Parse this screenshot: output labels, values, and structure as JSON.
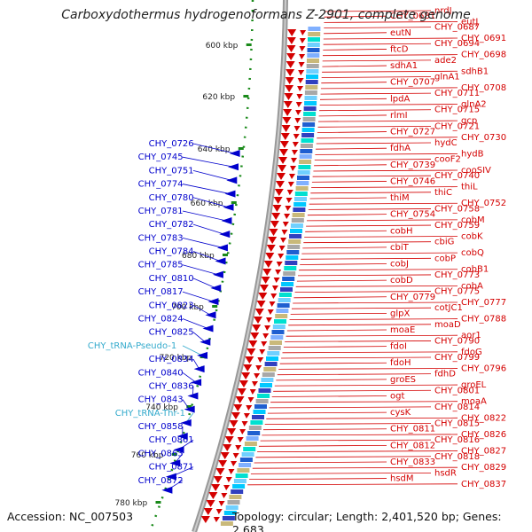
{
  "title": "Carboxydothermus hydrogenoformans Z-2901, complete genome",
  "footer": {
    "accession_label": "Accession: NC_007503",
    "summary_label": "Topology: circular; Length: 2,401,520 bp; Genes: 2,683"
  },
  "colors": {
    "forward_gene": "#d40000",
    "reverse_gene": "#0000cc",
    "trna": "#33aacc",
    "tick": "#1a8a1a",
    "axis": "#888888"
  },
  "kbp_ticks": [
    "600 kbp",
    "620 kbp",
    "640 kbp",
    "660 kbp",
    "680 kbp",
    "700 kbp",
    "720 kbp",
    "740 kbp",
    "760 kbp",
    "780 kbp"
  ],
  "right_labels": [
    "nrdJ",
    "CHY_0681",
    "eutJ",
    "CHY_0687",
    "eutN",
    "CHY_0691",
    "CHY_0694",
    "ftcD",
    "CHY_0698",
    "ade2",
    "sdhA1",
    "sdhB1",
    "glnA1",
    "CHY_0707",
    "CHY_0708",
    "CHY_0711",
    "lpdA",
    "glnA2",
    "CHY_0715",
    "rlmI",
    "gcp",
    "CHY_0721",
    "CHY_0727",
    "CHY_0730",
    "hydC",
    "fdhA",
    "hydB",
    "cooF2",
    "CHY_0739",
    "cooSIV",
    "CHY_0740",
    "CHY_0746",
    "thiL",
    "thiC",
    "thiM",
    "CHY_0752",
    "CHY_0758",
    "CHY_0754",
    "cobM",
    "CHY_0759",
    "cobH",
    "cobK",
    "cbiG",
    "cbiT",
    "cobQ",
    "cobP",
    "cobJ",
    "cobB1",
    "CHY_0773",
    "cobD",
    "cobA",
    "CHY_0775",
    "CHY_0779",
    "CHY_0777",
    "cotJC1",
    "glpX",
    "CHY_0788",
    "moaD",
    "moaE",
    "aor1",
    "CHY_0790",
    "fdoI",
    "fdoG",
    "CHY_0799",
    "fdoH",
    "CHY_0796",
    "fdhD",
    "groES",
    "groEL",
    "CHY_0801",
    "ogt",
    "moaA",
    "CHY_0814",
    "cysK",
    "CHY_0822",
    "CHY_0815",
    "CHY_0811",
    "CHY_0826",
    "CHY_0816",
    "CHY_0812",
    "CHY_0827",
    "CHY_0818",
    "CHY_0833",
    "CHY_0829",
    "hsdR",
    "hsdM",
    "CHY_0837"
  ],
  "left_labels": [
    "CHY_0726",
    "CHY_0745",
    "CHY_0751",
    "CHY_0774",
    "CHY_0780",
    "CHY_0781",
    "CHY_0782",
    "CHY_0783",
    "CHY_0784",
    "CHY_0785",
    "CHY_0810",
    "CHY_0817",
    "CHY_0823",
    "CHY_0824",
    "CHY_0825",
    "CHY_tRNA-Pseudo-1",
    "CHY_0834",
    "CHY_0840",
    "CHY_0836",
    "CHY_0843",
    "CHY_tRNA-Thr-1",
    "CHY_0858",
    "CHY_0861",
    "CHY_0863",
    "CHY_0871",
    "CHY_0872"
  ]
}
